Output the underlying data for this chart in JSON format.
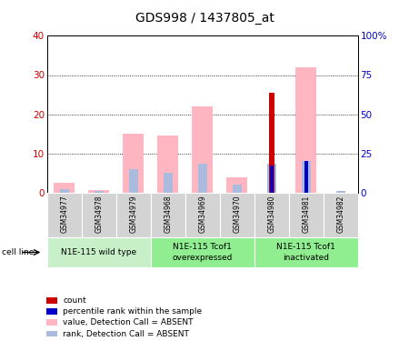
{
  "title": "GDS998 / 1437805_at",
  "samples": [
    "GSM34977",
    "GSM34978",
    "GSM34979",
    "GSM34968",
    "GSM34969",
    "GSM34970",
    "GSM34980",
    "GSM34981",
    "GSM34982"
  ],
  "count_values": [
    0,
    0,
    0,
    0,
    0,
    0,
    25.5,
    0,
    0
  ],
  "percentile_values": [
    0,
    0,
    0,
    0,
    0,
    0,
    7,
    8,
    0
  ],
  "value_absent": [
    2.5,
    0.7,
    15,
    14.5,
    22,
    4,
    0,
    32,
    0
  ],
  "rank_absent": [
    1.0,
    0.5,
    6,
    5,
    7.5,
    2,
    7.5,
    8,
    0.5
  ],
  "groups": [
    {
      "label": "N1E-115 wild type",
      "start": 0,
      "end": 3,
      "color": "#c8f0c8"
    },
    {
      "label": "N1E-115 Tcof1\noverexpressed",
      "start": 3,
      "end": 6,
      "color": "#90ee90"
    },
    {
      "label": "N1E-115 Tcof1\ninactivated",
      "start": 6,
      "end": 9,
      "color": "#90ee90"
    }
  ],
  "ylim_left": [
    0,
    40
  ],
  "ylim_right": [
    0,
    100
  ],
  "yticks_left": [
    0,
    10,
    20,
    30,
    40
  ],
  "yticks_right": [
    0,
    25,
    50,
    75,
    100
  ],
  "ytick_labels_left": [
    "0",
    "10",
    "20",
    "30",
    "40"
  ],
  "ytick_labels_right": [
    "0",
    "25",
    "50",
    "75",
    "100%"
  ],
  "color_count": "#cc0000",
  "color_percentile": "#0000cc",
  "color_value_absent": "#ffb6c1",
  "color_rank_absent": "#aabbdd",
  "bar_width": 0.6,
  "legend_items": [
    {
      "color": "#cc0000",
      "label": "count"
    },
    {
      "color": "#0000cc",
      "label": "percentile rank within the sample"
    },
    {
      "color": "#ffb6c1",
      "label": "value, Detection Call = ABSENT"
    },
    {
      "color": "#aabbdd",
      "label": "rank, Detection Call = ABSENT"
    }
  ],
  "cell_line_label": "cell line",
  "background_color": "#ffffff",
  "plot_bg_color": "#ffffff"
}
